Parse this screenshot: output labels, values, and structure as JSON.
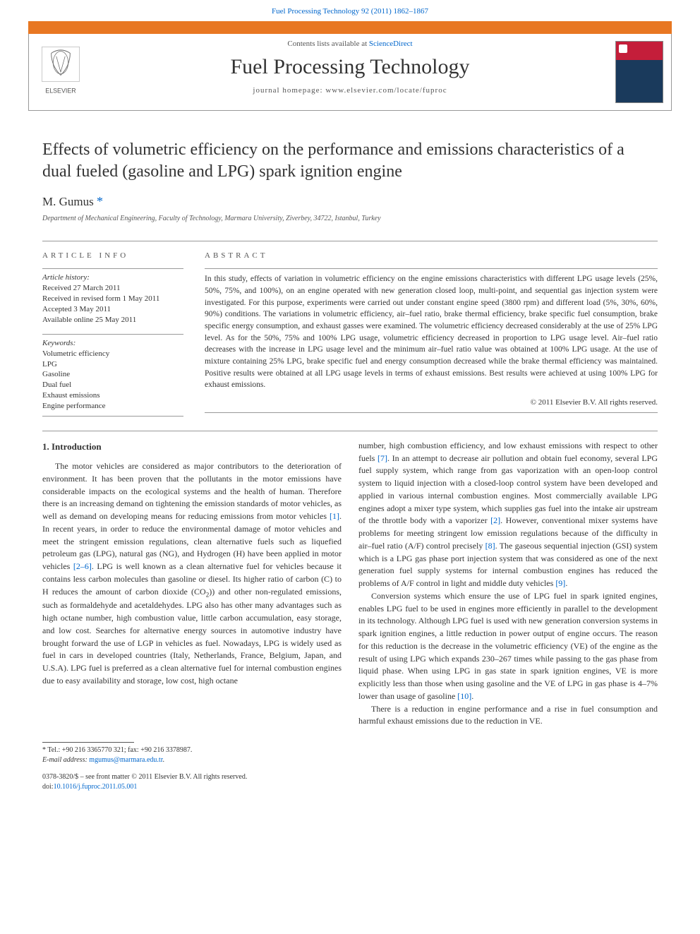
{
  "top_doi_link": "Fuel Processing Technology 92 (2011) 1862–1867",
  "header": {
    "contents_prefix": "Contents lists available at ",
    "contents_link": "ScienceDirect",
    "journal_name": "Fuel Processing Technology",
    "homepage_prefix": "journal homepage: ",
    "homepage_url": "www.elsevier.com/locate/fuproc",
    "elsevier_label": "ELSEVIER"
  },
  "paper": {
    "title": "Effects of volumetric efficiency on the performance and emissions characteristics of a dual fueled (gasoline and LPG) spark ignition engine",
    "author": "M. Gumus",
    "affiliation": "Department of Mechanical Engineering, Faculty of Technology, Marmara University, Ziverbey, 34722, Istanbul, Turkey"
  },
  "article_info": {
    "heading": "ARTICLE INFO",
    "history_label": "Article history:",
    "received": "Received 27 March 2011",
    "revised": "Received in revised form 1 May 2011",
    "accepted": "Accepted 3 May 2011",
    "online": "Available online 25 May 2011",
    "keywords_label": "Keywords:",
    "keywords": [
      "Volumetric efficiency",
      "LPG",
      "Gasoline",
      "Dual fuel",
      "Exhaust emissions",
      "Engine performance"
    ]
  },
  "abstract": {
    "heading": "ABSTRACT",
    "text": "In this study, effects of variation in volumetric efficiency on the engine emissions characteristics with different LPG usage levels (25%, 50%, 75%, and 100%), on an engine operated with new generation closed loop, multi-point, and sequential gas injection system were investigated. For this purpose, experiments were carried out under constant engine speed (3800 rpm) and different load (5%, 30%, 60%, 90%) conditions. The variations in volumetric efficiency, air–fuel ratio, brake thermal efficiency, brake specific fuel consumption, brake specific energy consumption, and exhaust gasses were examined. The volumetric efficiency decreased considerably at the use of 25% LPG level. As for the 50%, 75% and 100% LPG usage, volumetric efficiency decreased in proportion to LPG usage level. Air–fuel ratio decreases with the increase in LPG usage level and the minimum air–fuel ratio value was obtained at 100% LPG usage. At the use of mixture containing 25% LPG, brake specific fuel and energy consumption decreased while the brake thermal efficiency was maintained. Positive results were obtained at all LPG usage levels in terms of exhaust emissions. Best results were achieved at using 100% LPG for exhaust emissions.",
    "copyright": "© 2011 Elsevier B.V. All rights reserved."
  },
  "intro": {
    "heading": "1. Introduction",
    "col1_p1": "The motor vehicles are considered as major contributors to the deterioration of environment. It has been proven that the pollutants in the motor emissions have considerable impacts on the ecological systems and the health of human. Therefore there is an increasing demand on tightening the emission standards of motor vehicles, as well as demand on developing means for reducing emissions from motor vehicles [1]. In recent years, in order to reduce the environmental damage of motor vehicles and meet the stringent emission regulations, clean alternative fuels such as liquefied petroleum gas (LPG), natural gas (NG), and Hydrogen (H) have been applied in motor vehicles [2–6]. LPG is well known as a clean alternative fuel for vehicles because it contains less carbon molecules than gasoline or diesel. Its higher ratio of carbon (C) to H reduces the amount of carbon dioxide (CO₂) and other non-regulated emissions, such as formaldehyde and acetaldehydes. LPG also has other many advantages such as high octane number, high combustion value, little carbon accumulation, easy storage, and low cost. Searches for alternative energy sources in automotive industry have brought forward the use of LGP in vehicles as fuel. Nowadays, LPG is widely used as fuel in cars in developed countries (Italy, Netherlands, France, Belgium, Japan, and U.S.A). LPG fuel is preferred as a clean alternative fuel for internal combustion engines due to easy availability and storage, low cost, high octane",
    "col2_p1": "number, high combustion efficiency, and low exhaust emissions with respect to other fuels [7]. In an attempt to decrease air pollution and obtain fuel economy, several LPG fuel supply system, which range from gas vaporization with an open-loop control system to liquid injection with a closed-loop control system have been developed and applied in various internal combustion engines. Most commercially available LPG engines adopt a mixer type system, which supplies gas fuel into the intake air upstream of the throttle body with a vaporizer [2]. However, conventional mixer systems have problems for meeting stringent low emission regulations because of the difficulty in air–fuel ratio (A/F) control precisely [8]. The gaseous sequential injection (GSI) system which is a LPG gas phase port injection system that was considered as one of the next generation fuel supply systems for internal combustion engines has reduced the problems of A/F control in light and middle duty vehicles [9].",
    "col2_p2": "Conversion systems which ensure the use of LPG fuel in spark ignited engines, enables LPG fuel to be used in engines more efficiently in parallel to the development in its technology. Although LPG fuel is used with new generation conversion systems in spark ignition engines, a little reduction in power output of engine occurs. The reason for this reduction is the decrease in the volumetric efficiency (VE) of the engine as the result of using LPG which expands 230–267 times while passing to the gas phase from liquid phase. When using LPG in gas state in spark ignition engines, VE is more explicitly less than those when using gasoline and the VE of LPG in gas phase is 4–7% lower than usage of gasoline [10].",
    "col2_p3": "There is a reduction in engine performance and a rise in fuel consumption and harmful exhaust emissions due to the reduction in VE."
  },
  "footer": {
    "corr_tel": "* Tel.: +90 216 3365770 321; fax: +90 216 3378987.",
    "email_label": "E-mail address: ",
    "email": "mgumus@marmara.edu.tr",
    "issn_line": "0378-3820/$ – see front matter © 2011 Elsevier B.V. All rights reserved.",
    "doi_label": "doi:",
    "doi": "10.1016/j.fuproc.2011.05.001"
  },
  "colors": {
    "orange": "#e87722",
    "link": "#0066cc",
    "text": "#333333",
    "rule": "#999999"
  }
}
